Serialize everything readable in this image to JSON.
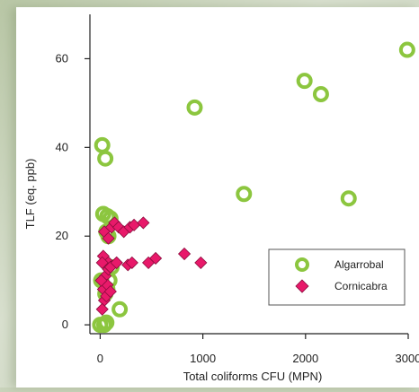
{
  "chart_data": {
    "type": "scatter",
    "xlabel": "Total coliforms CFU (MPN)",
    "ylabel": "TLF (eq. ppb)",
    "xlim": [
      -100,
      3000
    ],
    "ylim": [
      -2,
      70
    ],
    "x_ticks": [
      0,
      1000,
      2000,
      3000
    ],
    "y_ticks": [
      0,
      20,
      40,
      60
    ],
    "x_tick_labels": [
      "0",
      "1000",
      "2000",
      "3000"
    ],
    "y_tick_labels": [
      "0",
      "20",
      "40",
      "60"
    ],
    "grid": false,
    "legend_position": "bottom-right",
    "series": [
      {
        "name": "Algarrobal",
        "marker": "ring",
        "color": "#8cc63f",
        "x": [
          2990,
          1990,
          2150,
          920,
          1400,
          2420,
          20,
          50,
          30,
          70,
          100,
          60,
          80,
          110,
          90,
          70,
          50,
          190,
          0,
          40,
          60,
          10
        ],
        "y": [
          62,
          55,
          52,
          49,
          29.5,
          28.5,
          40.5,
          37.5,
          25,
          24.5,
          24,
          21,
          20,
          13,
          10,
          8,
          7,
          3.5,
          0,
          0,
          0.5,
          10
        ]
      },
      {
        "name": "Cornicabra",
        "marker": "diamond",
        "color": "#e8196a",
        "x": [
          40,
          80,
          110,
          140,
          180,
          230,
          290,
          330,
          420,
          270,
          160,
          60,
          30,
          20,
          50,
          80,
          100,
          160,
          310,
          470,
          540,
          820,
          980,
          30,
          70,
          40,
          20,
          60,
          100,
          10
        ],
        "y": [
          21,
          19.5,
          22,
          23,
          22,
          21,
          22,
          22.5,
          23,
          13.5,
          14,
          14.5,
          15.5,
          14,
          11,
          12.5,
          13,
          14,
          14,
          14,
          15,
          16,
          14,
          8,
          9,
          5.5,
          3.5,
          6.5,
          7.5,
          10
        ]
      }
    ]
  }
}
